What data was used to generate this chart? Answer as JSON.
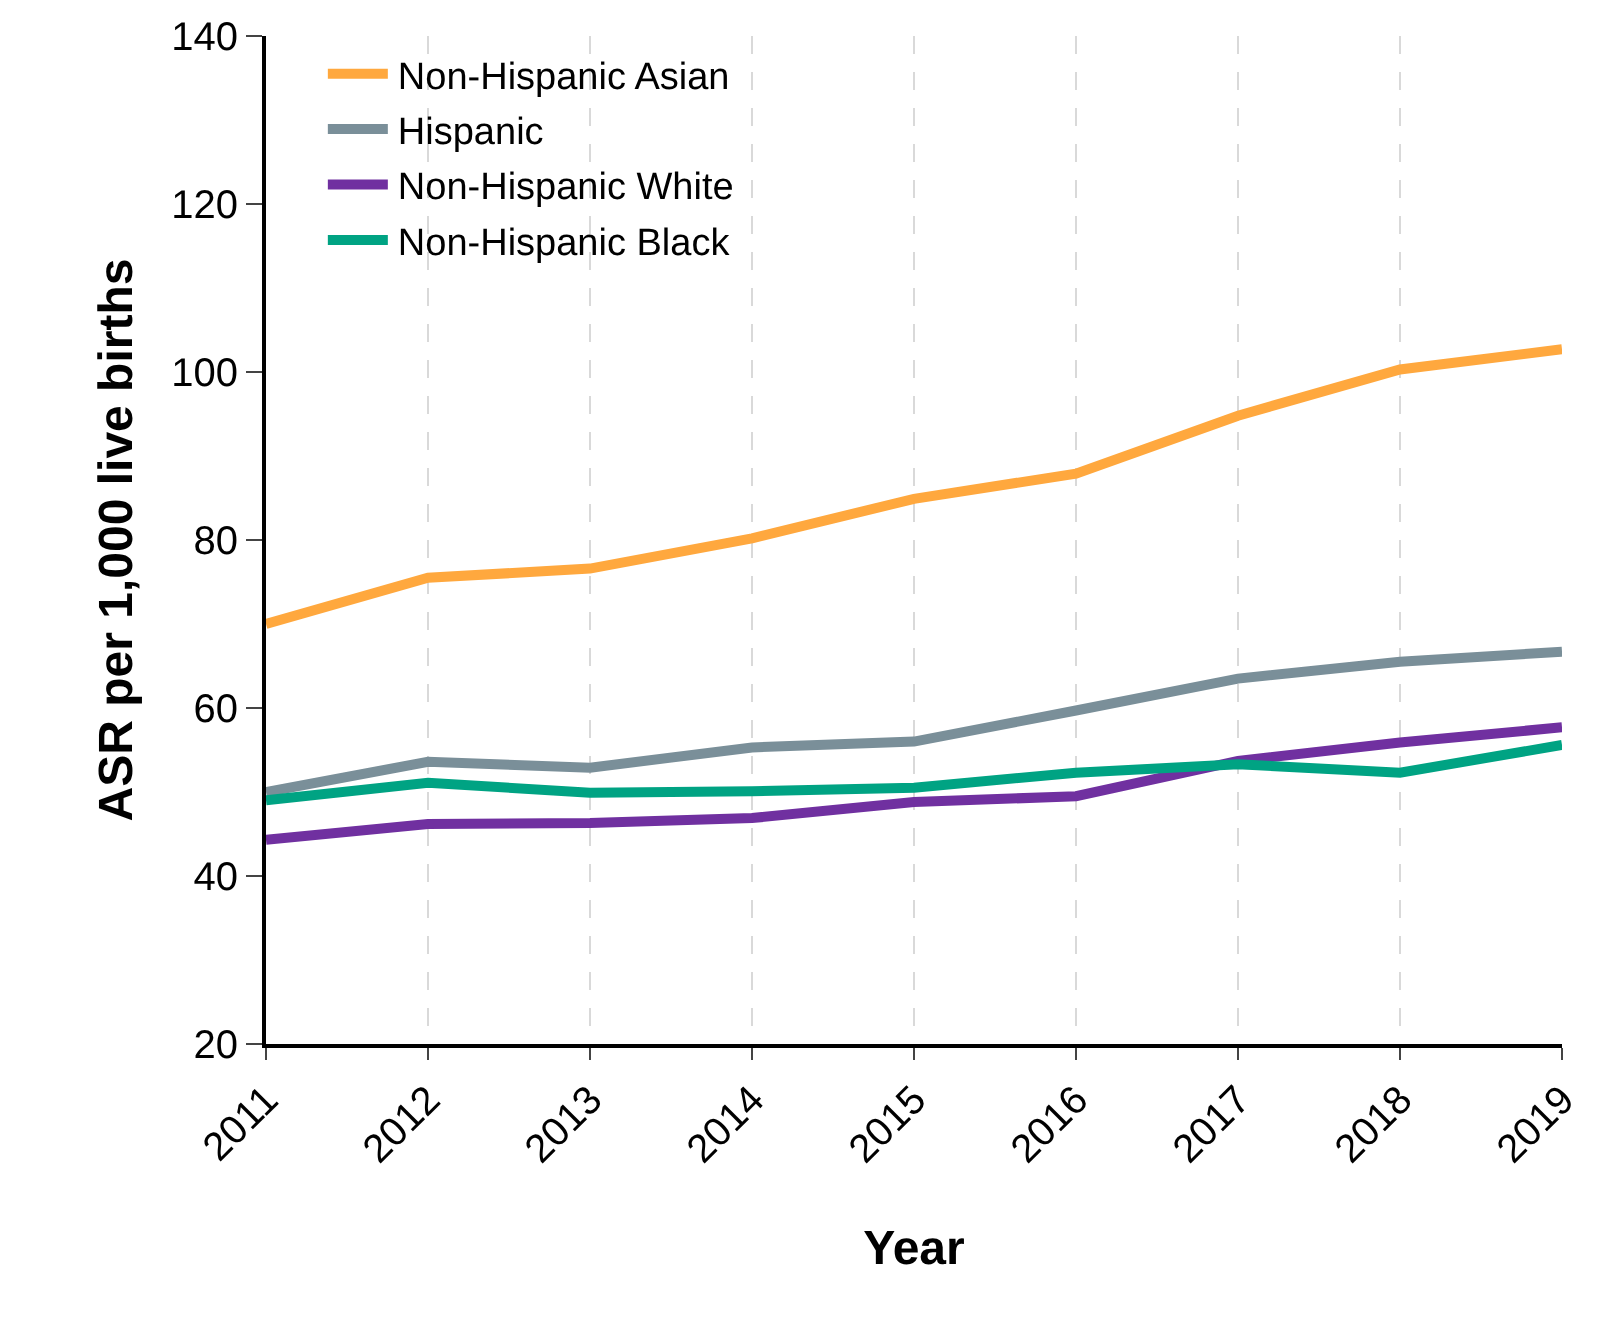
{
  "chart_data": {
    "type": "line",
    "xlabel": "Year",
    "ylabel": "ASR per 1,000 live births",
    "categories": [
      "2011",
      "2012",
      "2013",
      "2014",
      "2015",
      "2016",
      "2017",
      "2018",
      "2019"
    ],
    "series": [
      {
        "name": "Non-Hispanic Asian",
        "color": "#ffa83e",
        "values": [
          70.0,
          75.5,
          76.6,
          80.2,
          84.9,
          87.9,
          94.8,
          100.3,
          102.7
        ]
      },
      {
        "name": "Hispanic",
        "color": "#7a8f99",
        "values": [
          50.0,
          53.6,
          52.9,
          55.3,
          56.0,
          59.7,
          63.5,
          65.5,
          66.7
        ]
      },
      {
        "name": "Non-Hispanic White",
        "color": "#7030a0",
        "values": [
          44.3,
          46.2,
          46.3,
          46.9,
          48.8,
          49.5,
          53.7,
          55.9,
          57.7
        ]
      },
      {
        "name": "Non-Hispanic Black",
        "color": "#00a383",
        "values": [
          49.0,
          51.1,
          49.9,
          50.1,
          50.5,
          52.3,
          53.3,
          52.3,
          55.6
        ]
      }
    ],
    "ylim": [
      20,
      140
    ],
    "yticks": [
      20,
      40,
      60,
      80,
      100,
      120,
      140
    ],
    "grid": "x",
    "legend": "top left",
    "marker": "none",
    "line_style": "solid"
  }
}
